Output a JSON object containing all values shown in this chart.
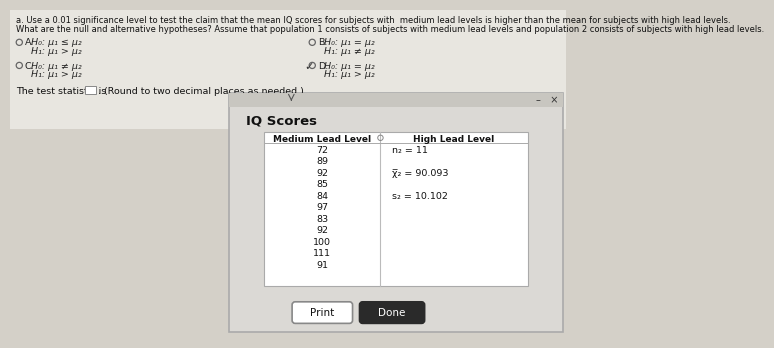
{
  "title_line1": "a. Use a 0.01 significance level to test the claim that the mean IQ scores for subjects with  medium lead levels is higher than the mean for subjects with high lead levels.",
  "title_line2": "What are the null and alternative hypotheses? Assume that population 1 consists of subjects with medium lead levels and population 2 consists of subjects with high lead levels.",
  "option_A_h0": "H₀: μ₁ ≤ μ₂",
  "option_A_h1": "H₁: μ₁ > μ₂",
  "option_B_h0": "H₀: μ₁ = μ₂",
  "option_B_h1": "H₁: μ₁ ≠ μ₂",
  "option_C_h0": "H₀: μ₁ ≠ μ₂",
  "option_C_h1": "H₁: μ₁ > μ₂",
  "option_D_h0": "H₀: μ₁ = μ₂",
  "option_D_h1": "H₁: μ₁ > μ₂",
  "test_stat_label": "The test statistic is",
  "test_stat_note": ". (Round to two decimal places as needed.)",
  "dialog_title": "IQ Scores",
  "col1_header": "Medium Lead Level",
  "col2_header": "High Lead Level",
  "medium_values": [
    "72",
    "89",
    "92",
    "85",
    "84",
    "97",
    "83",
    "92",
    "100",
    "111",
    "91"
  ],
  "high_stat1": "n₂ = 11",
  "high_stat2": "χ̅₂ = 90.093",
  "high_stat3": "s₂ = 10.102",
  "bg_color": "#d4d0c8",
  "top_bg_color": "#e8e6e0",
  "dialog_bg": "#e0dedd",
  "table_bg": "#f0efee",
  "button_print_label": "Print",
  "button_done_label": "Done",
  "label_A": "A.",
  "label_B": "B.",
  "label_C": "C.",
  "label_D": "D."
}
